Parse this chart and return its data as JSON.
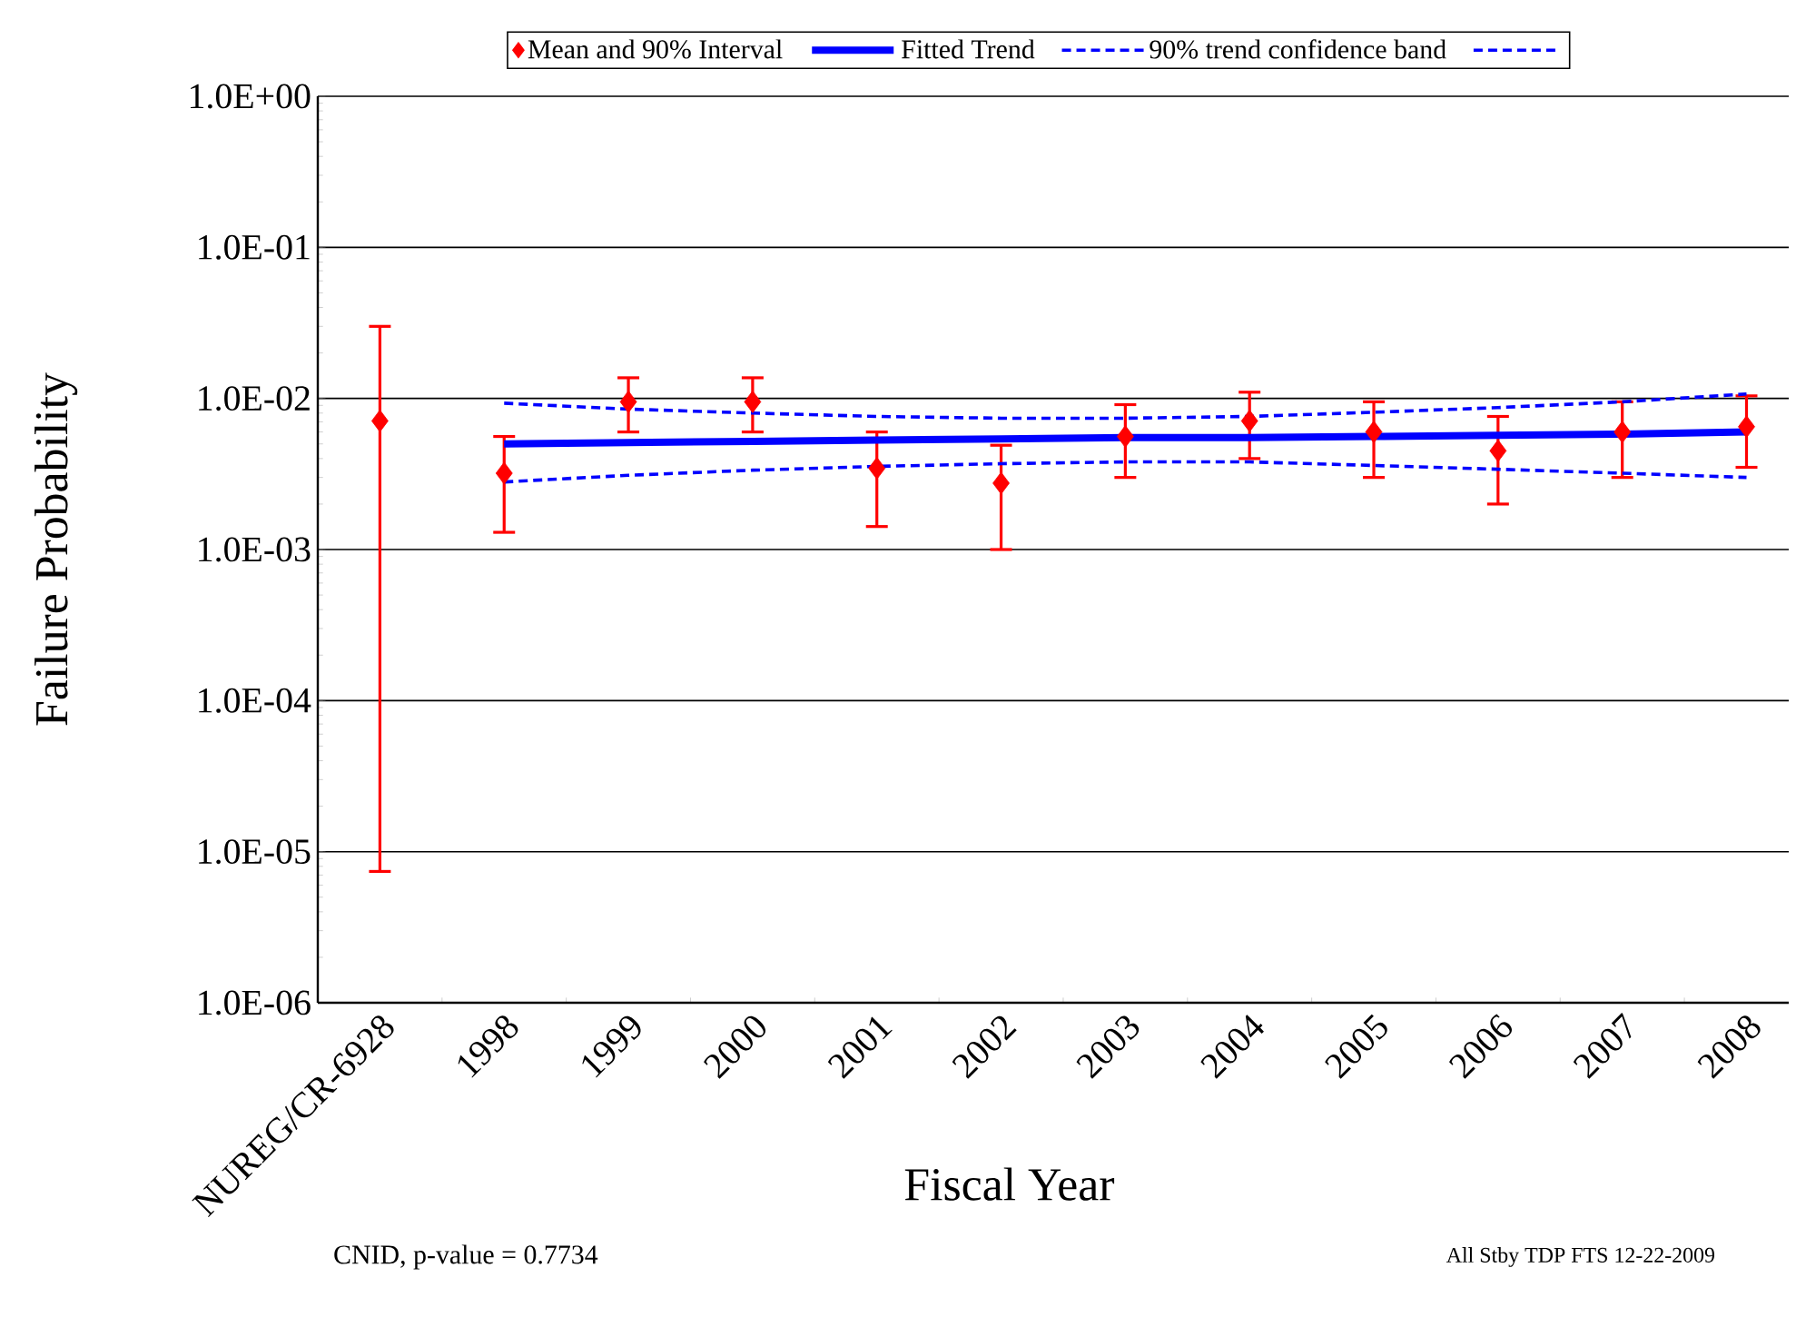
{
  "chart_data": {
    "type": "scatter",
    "xlabel": "Fiscal Year",
    "ylabel": "Failure Probability",
    "categories": [
      "NUREG/CR-6928",
      "1998",
      "1999",
      "2000",
      "2001",
      "2002",
      "2003",
      "2004",
      "2005",
      "2006",
      "2007",
      "2008"
    ],
    "series": [
      {
        "name": "Mean and 90% Interval",
        "color": "#ff0000",
        "marker": "diamond",
        "values": [
          0.0071,
          0.0032,
          0.0095,
          0.0095,
          0.00345,
          0.00275,
          0.0056,
          0.0071,
          0.006,
          0.0045,
          0.006,
          0.0065
        ],
        "errors": [
          [
            7.4e-06,
            0.03
          ],
          [
            0.0013,
            0.0056
          ],
          [
            0.006,
            0.0137
          ],
          [
            0.006,
            0.0137
          ],
          [
            0.00142,
            0.006
          ],
          [
            0.001,
            0.0049
          ],
          [
            0.003,
            0.0091
          ],
          [
            0.004,
            0.011
          ],
          [
            0.003,
            0.0095
          ],
          [
            0.002,
            0.0076
          ],
          [
            0.003,
            0.0095
          ],
          [
            0.0035,
            0.0104
          ]
        ]
      },
      {
        "name": "Fitted Trend",
        "type": "line",
        "color": "#0000ff",
        "line_style": "solid",
        "values": [
          null,
          0.005,
          0.0051,
          0.0052,
          0.0053,
          0.0054,
          0.0055,
          0.0055,
          0.0056,
          0.0057,
          0.0058,
          0.006
        ]
      },
      {
        "name": "90% trend confidence band",
        "type": "line",
        "color": "#0000ff",
        "line_style": "dashed",
        "values": [
          null,
          0.0093,
          0.0085,
          0.008,
          0.0076,
          0.0074,
          0.0074,
          0.0076,
          0.0081,
          0.0087,
          0.0095,
          0.0107
        ]
      },
      {
        "type": "line",
        "color": "#0000ff",
        "line_style": "dashed",
        "values": [
          null,
          0.0028,
          0.0031,
          0.00335,
          0.00355,
          0.0037,
          0.0038,
          0.0038,
          0.0036,
          0.0034,
          0.0032,
          0.003
        ]
      }
    ],
    "log": "y",
    "ylim": [
      1e-06,
      1
    ],
    "yticks": [
      {
        "value": 1e-06,
        "label": "1.0E-06"
      },
      {
        "value": 1e-05,
        "label": "1.0E-05"
      },
      {
        "value": 0.0001,
        "label": "1.0E-04"
      },
      {
        "value": 0.001,
        "label": "1.0E-03"
      },
      {
        "value": 0.01,
        "label": "1.0E-02"
      },
      {
        "value": 0.1,
        "label": "1.0E-01"
      },
      {
        "value": 1,
        "label": "1.0E+00"
      }
    ],
    "grid": "y",
    "legend": "top",
    "annotations": [
      "CNID, p-value = 0.7734",
      "All Stby TDP FTS 12-22-2009"
    ]
  }
}
